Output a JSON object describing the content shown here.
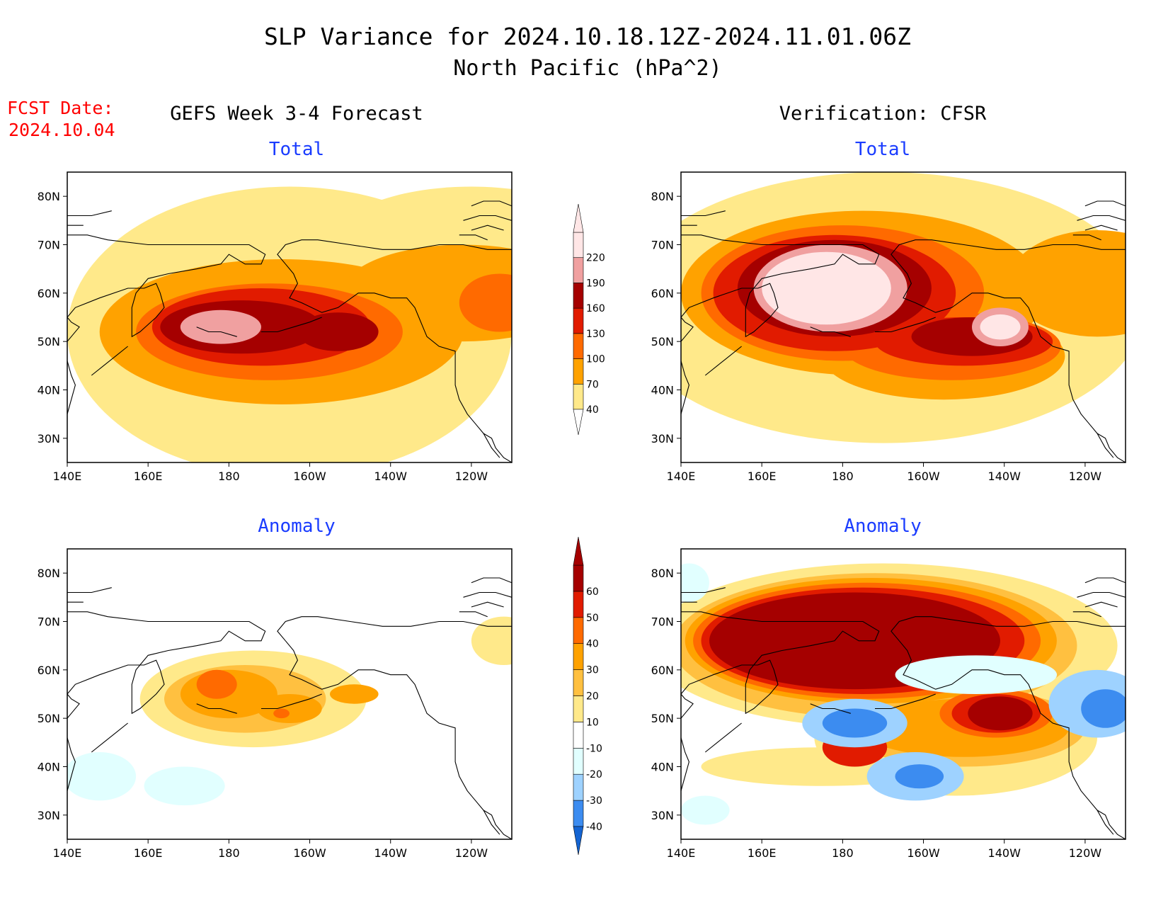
{
  "title": {
    "line1": "SLP Variance for 2024.10.18.12Z-2024.11.01.06Z",
    "line2": "North Pacific (hPa^2)"
  },
  "fcst_date": {
    "label": "FCST Date:",
    "value": "2024.10.04"
  },
  "columns": {
    "left": "GEFS Week 3-4 Forecast",
    "right": "Verification: CFSR"
  },
  "panel_titles": {
    "total": "Total",
    "anomaly": "Anomaly"
  },
  "colors": {
    "title_red": "#ff0000",
    "subtitle_blue": "#1a3cff",
    "total_levels": [
      "#ffffff",
      "#ffe98a",
      "#ffa200",
      "#ff6a00",
      "#e11b00",
      "#a50000",
      "#f0a0a0",
      "#ffe6e6"
    ],
    "anomaly_levels": [
      "#1464d2",
      "#3c8cf0",
      "#9ed2ff",
      "#e1ffff",
      "#ffffff",
      "#ffe98a",
      "#ffc040",
      "#ffa200",
      "#ff6a00",
      "#e11b00",
      "#a50000"
    ]
  },
  "chart_data": [
    {
      "type": "heatmap",
      "panel": "GEFS Week 3-4 Forecast",
      "subtitle": "Total",
      "x_ticks": [
        "140E",
        "160E",
        "180",
        "160W",
        "140W",
        "120W"
      ],
      "y_ticks": [
        "30N",
        "40N",
        "50N",
        "60N",
        "70N",
        "80N"
      ],
      "xlim": [
        140,
        250
      ],
      "ylim": [
        25,
        85
      ],
      "colorbar_levels": [
        40,
        70,
        100,
        130,
        160,
        190,
        220
      ],
      "features": [
        {
          "level": 1,
          "lon": 195,
          "lat": 52,
          "rlon": 55,
          "rlat": 30
        },
        {
          "level": 1,
          "lon": 240,
          "lat": 70,
          "rlon": 35,
          "rlat": 12
        },
        {
          "level": 2,
          "lon": 193,
          "lat": 52,
          "rlon": 45,
          "rlat": 15
        },
        {
          "level": 2,
          "lon": 238,
          "lat": 60,
          "rlon": 30,
          "rlat": 10
        },
        {
          "level": 3,
          "lon": 190,
          "lat": 52,
          "rlon": 33,
          "rlat": 10
        },
        {
          "level": 3,
          "lon": 247,
          "lat": 58,
          "rlon": 10,
          "rlat": 6
        },
        {
          "level": 4,
          "lon": 188,
          "lat": 53,
          "rlon": 27,
          "rlat": 8
        },
        {
          "level": 5,
          "lon": 183,
          "lat": 53,
          "rlon": 20,
          "rlat": 5.5
        },
        {
          "level": 5,
          "lon": 207,
          "lat": 52,
          "rlon": 10,
          "rlat": 4
        },
        {
          "level": 6,
          "lon": 178,
          "lat": 53,
          "rlon": 10,
          "rlat": 3.5
        }
      ]
    },
    {
      "type": "heatmap",
      "panel": "Verification: CFSR",
      "subtitle": "Total",
      "x_ticks": [
        "140E",
        "160E",
        "180",
        "160W",
        "140W",
        "120W"
      ],
      "y_ticks": [
        "30N",
        "40N",
        "50N",
        "60N",
        "70N",
        "80N"
      ],
      "xlim": [
        140,
        250
      ],
      "ylim": [
        25,
        85
      ],
      "colorbar_levels": [
        40,
        70,
        100,
        130,
        160,
        190,
        220
      ],
      "features": [
        {
          "level": 1,
          "lon": 190,
          "lat": 57,
          "rlon": 65,
          "rlat": 28
        },
        {
          "level": 2,
          "lon": 185,
          "lat": 60,
          "rlon": 45,
          "rlat": 17
        },
        {
          "level": 2,
          "lon": 205,
          "lat": 47,
          "rlon": 30,
          "rlat": 9
        },
        {
          "level": 2,
          "lon": 243,
          "lat": 62,
          "rlon": 22,
          "rlat": 11
        },
        {
          "level": 3,
          "lon": 180,
          "lat": 60,
          "rlon": 35,
          "rlat": 14
        },
        {
          "level": 3,
          "lon": 207,
          "lat": 49,
          "rlon": 27,
          "rlat": 7
        },
        {
          "level": 4,
          "lon": 178,
          "lat": 60,
          "rlon": 30,
          "rlat": 12
        },
        {
          "level": 4,
          "lon": 210,
          "lat": 50,
          "rlon": 22,
          "rlat": 5
        },
        {
          "level": 5,
          "lon": 178,
          "lat": 61,
          "rlon": 24,
          "rlat": 10
        },
        {
          "level": 5,
          "lon": 212,
          "lat": 51,
          "rlon": 15,
          "rlat": 4
        },
        {
          "level": 6,
          "lon": 177,
          "lat": 61,
          "rlon": 19,
          "rlat": 9
        },
        {
          "level": 6,
          "lon": 219,
          "lat": 53,
          "rlon": 7,
          "rlat": 4
        },
        {
          "level": 7,
          "lon": 176,
          "lat": 61,
          "rlon": 16,
          "rlat": 7.5
        },
        {
          "level": 7,
          "lon": 219,
          "lat": 53,
          "rlon": 5,
          "rlat": 2.6
        }
      ]
    },
    {
      "type": "heatmap",
      "panel": "GEFS Week 3-4 Forecast",
      "subtitle": "Anomaly",
      "x_ticks": [
        "140E",
        "160E",
        "180",
        "160W",
        "140W",
        "120W"
      ],
      "y_ticks": [
        "30N",
        "40N",
        "50N",
        "60N",
        "70N",
        "80N"
      ],
      "xlim": [
        140,
        250
      ],
      "ylim": [
        25,
        85
      ],
      "colorbar_levels": [
        -40,
        -30,
        -20,
        -10,
        10,
        20,
        30,
        40,
        50,
        60
      ],
      "features": [
        {
          "level": 3,
          "lon": 148,
          "lat": 38,
          "rlon": 9,
          "rlat": 5
        },
        {
          "level": 3,
          "lon": 169,
          "lat": 36,
          "rlon": 10,
          "rlat": 4
        },
        {
          "level": 5,
          "lon": 186,
          "lat": 54,
          "rlon": 28,
          "rlat": 10
        },
        {
          "level": 5,
          "lon": 248,
          "lat": 66,
          "rlon": 8,
          "rlat": 5
        },
        {
          "level": 6,
          "lon": 184,
          "lat": 54,
          "rlon": 20,
          "rlat": 7
        },
        {
          "level": 7,
          "lon": 180,
          "lat": 55,
          "rlon": 12,
          "rlat": 5
        },
        {
          "level": 7,
          "lon": 195,
          "lat": 52,
          "rlon": 8,
          "rlat": 3
        },
        {
          "level": 7,
          "lon": 211,
          "lat": 55,
          "rlon": 6,
          "rlat": 2
        },
        {
          "level": 8,
          "lon": 177,
          "lat": 57,
          "rlon": 5,
          "rlat": 3
        },
        {
          "level": 8,
          "lon": 193,
          "lat": 51,
          "rlon": 2,
          "rlat": 1
        }
      ]
    },
    {
      "type": "heatmap",
      "panel": "Verification: CFSR",
      "subtitle": "Anomaly",
      "x_ticks": [
        "140E",
        "160E",
        "180",
        "160W",
        "140W",
        "120W"
      ],
      "y_ticks": [
        "30N",
        "40N",
        "50N",
        "60N",
        "70N",
        "80N"
      ],
      "xlim": [
        140,
        250
      ],
      "ylim": [
        25,
        85
      ],
      "colorbar_levels": [
        -40,
        -30,
        -20,
        -10,
        10,
        20,
        30,
        40,
        50,
        60
      ],
      "features": [
        {
          "level": 5,
          "lon": 190,
          "lat": 65,
          "rlon": 58,
          "rlat": 17
        },
        {
          "level": 5,
          "lon": 208,
          "lat": 46,
          "rlon": 35,
          "rlat": 12
        },
        {
          "level": 5,
          "lon": 175,
          "lat": 40,
          "rlon": 30,
          "rlat": 4
        },
        {
          "level": 6,
          "lon": 188,
          "lat": 65,
          "rlon": 50,
          "rlat": 15
        },
        {
          "level": 6,
          "lon": 210,
          "lat": 48,
          "rlon": 30,
          "rlat": 8
        },
        {
          "level": 7,
          "lon": 187,
          "lat": 66,
          "rlon": 46,
          "rlat": 13
        },
        {
          "level": 7,
          "lon": 210,
          "lat": 48,
          "rlon": 26,
          "rlat": 6
        },
        {
          "level": 8,
          "lon": 186,
          "lat": 66,
          "rlon": 43,
          "rlat": 12
        },
        {
          "level": 8,
          "lon": 218,
          "lat": 51,
          "rlon": 14,
          "rlat": 5
        },
        {
          "level": 9,
          "lon": 185,
          "lat": 66,
          "rlon": 40,
          "rlat": 11
        },
        {
          "level": 9,
          "lon": 218,
          "lat": 51,
          "rlon": 11,
          "rlat": 4
        },
        {
          "level": 9,
          "lon": 183,
          "lat": 44,
          "rlon": 8,
          "rlat": 4
        },
        {
          "level": 10,
          "lon": 183,
          "lat": 66,
          "rlon": 36,
          "rlat": 10
        },
        {
          "level": 10,
          "lon": 219,
          "lat": 51,
          "rlon": 8,
          "rlat": 3.5
        },
        {
          "level": 2,
          "lon": 183,
          "lat": 49,
          "rlon": 13,
          "rlat": 5
        },
        {
          "level": 1,
          "lon": 183,
          "lat": 49,
          "rlon": 8,
          "rlat": 3
        },
        {
          "level": 2,
          "lon": 198,
          "lat": 38,
          "rlon": 12,
          "rlat": 5
        },
        {
          "level": 1,
          "lon": 199,
          "lat": 38,
          "rlon": 6,
          "rlat": 2.5
        },
        {
          "level": 2,
          "lon": 243,
          "lat": 53,
          "rlon": 12,
          "rlat": 7
        },
        {
          "level": 1,
          "lon": 245,
          "lat": 52,
          "rlon": 6,
          "rlat": 4
        },
        {
          "level": 3,
          "lon": 213,
          "lat": 59,
          "rlon": 20,
          "rlat": 4
        },
        {
          "level": 3,
          "lon": 142,
          "lat": 78,
          "rlon": 5,
          "rlat": 4
        },
        {
          "level": 3,
          "lon": 146,
          "lat": 31,
          "rlon": 6,
          "rlat": 3
        }
      ]
    }
  ],
  "colorbars": {
    "total": [
      "40",
      "70",
      "100",
      "130",
      "160",
      "190",
      "220"
    ],
    "anomaly": [
      "-40",
      "-30",
      "-20",
      "-10",
      "10",
      "20",
      "30",
      "40",
      "50",
      "60"
    ]
  }
}
